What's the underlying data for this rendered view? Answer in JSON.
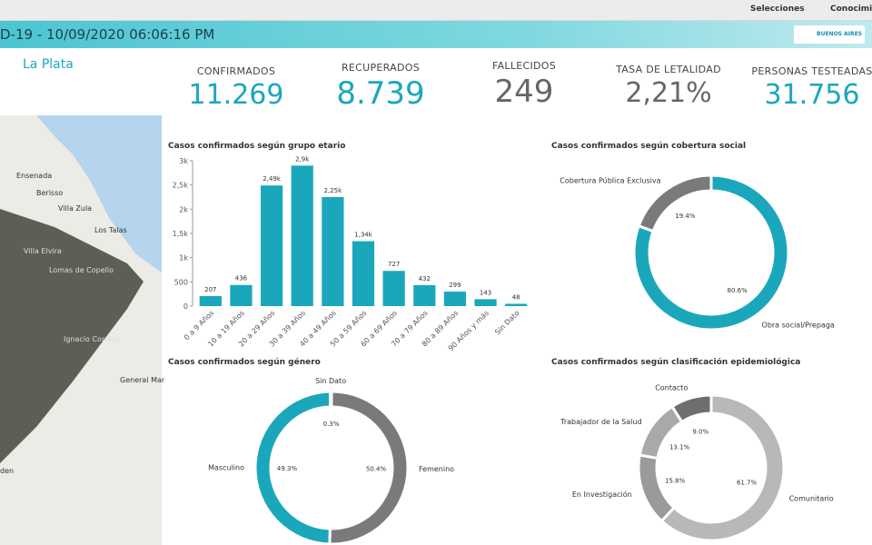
{
  "toolbar": {
    "selections": "Selecciones",
    "knowledge": "Conocimiento"
  },
  "header": {
    "title": "D-19 - 10/09/2020 06:06:16 PM",
    "logo": "BUENOS AIRES"
  },
  "location": "La Plata",
  "kpis": [
    {
      "label": "CONFIRMADOS",
      "value": "11.269"
    },
    {
      "label": "RECUPERADOS",
      "value": "8.739"
    },
    {
      "label": "FALLECIDOS",
      "value": "249"
    },
    {
      "label": "TASA DE LETALIDAD",
      "value": "2,21%"
    },
    {
      "label": "PERSONAS TESTEADAS",
      "value": "31.756"
    }
  ],
  "map_labels": [
    "Ensenada",
    "Berisso",
    "Villa Zula",
    "Los Talas",
    "Villa Elvira",
    "Lomas de Copello",
    "Ignacio Correas",
    "General Mar",
    "den"
  ],
  "chart_data": [
    {
      "type": "bar",
      "title": "Casos confirmados según grupo etario",
      "categories": [
        "0 a 9 Años",
        "10 a 19 Años",
        "20 a 29 Años",
        "30 a 39 Años",
        "40 a 49 Años",
        "50 a 59 Años",
        "60 a 69 Años",
        "70 a 79 Años",
        "80 a 89 Años",
        "90 Años y más",
        "Sin Dato"
      ],
      "values": [
        207,
        436,
        2490,
        2900,
        2250,
        1340,
        727,
        432,
        299,
        143,
        48
      ],
      "value_labels": [
        "207",
        "436",
        "2,49k",
        "2,9k",
        "2,25k",
        "1,34k",
        "727",
        "432",
        "299",
        "143",
        "48"
      ],
      "color": "#1ba7bb",
      "ylim": [
        0,
        3000
      ],
      "yticks": [
        0,
        500,
        {
          "value": 1000,
          "label": "1k"
        },
        {
          "value": 1500,
          "label": "1,5k"
        },
        {
          "value": 2000,
          "label": "2k"
        },
        {
          "value": 2500,
          "label": "2,5k"
        },
        {
          "value": 3000,
          "label": "3k"
        }
      ]
    },
    {
      "type": "donut",
      "title": "Casos confirmados según cobertura social",
      "categories": [
        "Obra social/Prepaga",
        "Cobertura Pública Exclusiva"
      ],
      "values": [
        80.6,
        19.4
      ],
      "value_labels": [
        "80.6%",
        "19.4%"
      ],
      "colors": [
        "#1ba7bb",
        "#7a7a7a"
      ]
    },
    {
      "type": "donut",
      "title": "Casos confirmados según género",
      "categories": [
        "Femenino",
        "Masculino",
        "Sin Dato"
      ],
      "values": [
        50.4,
        49.3,
        0.3
      ],
      "value_labels": [
        "50.4%",
        "49.3%",
        "0.3%"
      ],
      "colors": [
        "#7a7a7a",
        "#1ba7bb",
        "#cfcfcf"
      ]
    },
    {
      "type": "donut",
      "title": "Casos confirmados según clasificación epidemiológica",
      "categories": [
        "Comunitario",
        "En Investigación",
        "Trabajador de la Salud",
        "Contacto"
      ],
      "values": [
        61.7,
        15.8,
        13.1,
        9.0
      ],
      "value_labels": [
        "61.7%",
        "15.8%",
        "13.1%",
        "9.0%"
      ],
      "colors": [
        "#b8b8b8",
        "#9a9a9a",
        "#a9a9a9",
        "#6e6e6e"
      ]
    }
  ]
}
